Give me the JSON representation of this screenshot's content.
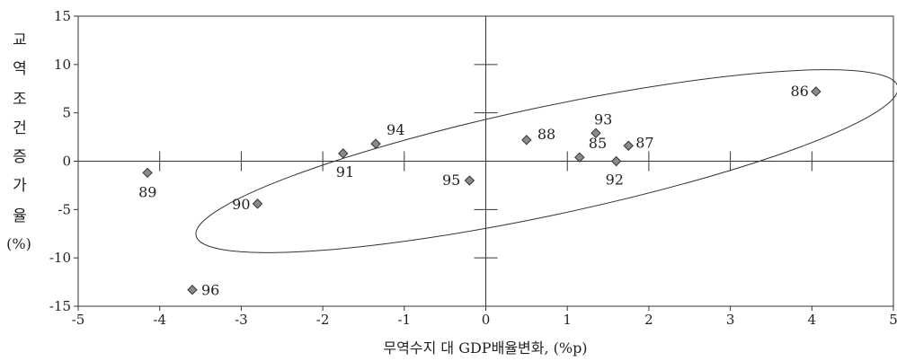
{
  "chart_data": {
    "type": "scatter",
    "title": "",
    "xlabel": "무역수지 대 GDP배율변화, (%p)",
    "ylabel": "교역조건증가율 (%)",
    "ylabel_chars": [
      "교",
      "역",
      "조",
      "건",
      "증",
      "가",
      "율",
      "(%)"
    ],
    "xlim": [
      -5,
      5
    ],
    "ylim": [
      -15,
      15
    ],
    "x_ticks": [
      -5,
      -4,
      -3,
      -2,
      -1,
      0,
      1,
      2,
      3,
      4,
      5
    ],
    "y_ticks": [
      15,
      10,
      5,
      0,
      -5,
      -10,
      -15
    ],
    "grid": false,
    "marker_color": "#8a8a8a",
    "points": [
      {
        "label": "86",
        "x": 4.05,
        "y": 7.2
      },
      {
        "label": "93",
        "x": 1.35,
        "y": 2.9
      },
      {
        "label": "88",
        "x": 0.5,
        "y": 2.2
      },
      {
        "label": "87",
        "x": 1.75,
        "y": 1.6
      },
      {
        "label": "85",
        "x": 1.15,
        "y": 0.4
      },
      {
        "label": "92",
        "x": 1.6,
        "y": 0.0
      },
      {
        "label": "94",
        "x": -1.35,
        "y": 1.8
      },
      {
        "label": "91",
        "x": -1.75,
        "y": 0.8
      },
      {
        "label": "95",
        "x": -0.2,
        "y": -2.0
      },
      {
        "label": "89",
        "x": -4.15,
        "y": -1.2
      },
      {
        "label": "90",
        "x": -2.8,
        "y": -4.4
      },
      {
        "label": "96",
        "x": -3.6,
        "y": -13.3
      }
    ],
    "annotation": {
      "type": "ellipse",
      "cx": 0.75,
      "cy": 0.0,
      "rx": 4.4,
      "ry": 5.6,
      "rotation_deg": -12
    }
  }
}
